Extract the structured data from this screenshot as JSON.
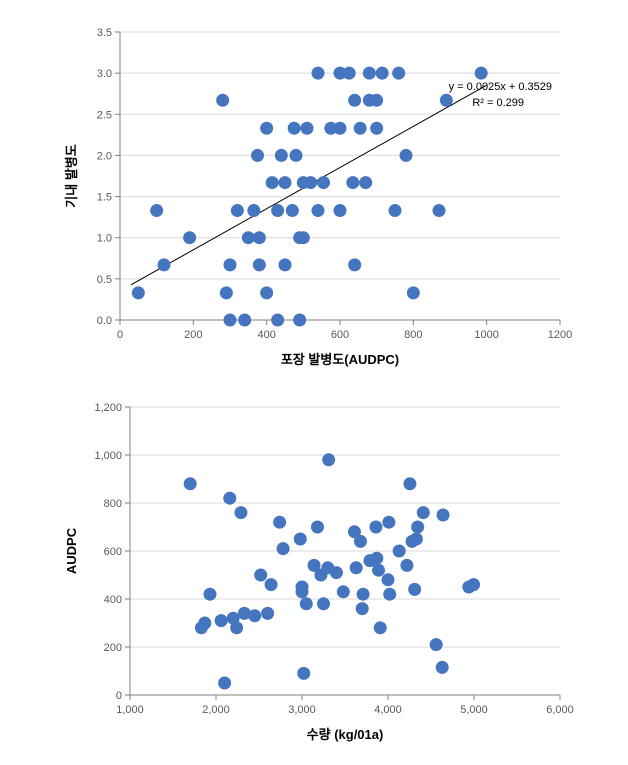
{
  "chart1": {
    "type": "scatter",
    "x_label": "포장 발병도(AUDPC)",
    "y_label": "기내 발병도",
    "xlim": [
      0,
      1200
    ],
    "ylim": [
      0.0,
      3.5
    ],
    "xtick_step": 200,
    "ytick_step": 0.5,
    "background_color": "#ffffff",
    "grid_color": "#d9d9d9",
    "axis_color": "#808080",
    "tick_color": "#808080",
    "tick_label_color": "#595959",
    "marker_color": "#4675c0",
    "marker_radius": 6.5,
    "marker_opacity": 1.0,
    "title_fontsize": 13,
    "tick_fontsize": 11,
    "regression": {
      "slope": 0.0025,
      "intercept": 0.3529,
      "r2": 0.299,
      "equation_text": "y = 0.0025x + 0.3529",
      "r2_text": "R² = 0.299",
      "line_color": "#000000",
      "line_width": 1,
      "x_start": 30,
      "x_end": 1000
    },
    "points": [
      [
        50,
        0.33
      ],
      [
        100,
        1.33
      ],
      [
        120,
        0.67
      ],
      [
        190,
        1.0
      ],
      [
        280,
        2.67
      ],
      [
        290,
        0.33
      ],
      [
        300,
        0.0
      ],
      [
        300,
        0.67
      ],
      [
        320,
        1.33
      ],
      [
        340,
        0.0
      ],
      [
        350,
        1.0
      ],
      [
        365,
        1.33
      ],
      [
        375,
        2.0
      ],
      [
        380,
        0.67
      ],
      [
        380,
        1.0
      ],
      [
        400,
        0.33
      ],
      [
        400,
        2.33
      ],
      [
        415,
        1.67
      ],
      [
        430,
        0.0
      ],
      [
        430,
        1.33
      ],
      [
        440,
        2.0
      ],
      [
        450,
        0.67
      ],
      [
        450,
        1.67
      ],
      [
        470,
        1.33
      ],
      [
        475,
        2.33
      ],
      [
        480,
        2.0
      ],
      [
        490,
        0.0
      ],
      [
        490,
        1.0
      ],
      [
        500,
        1.0
      ],
      [
        500,
        1.67
      ],
      [
        510,
        2.33
      ],
      [
        520,
        1.67
      ],
      [
        540,
        1.33
      ],
      [
        540,
        3.0
      ],
      [
        555,
        1.67
      ],
      [
        575,
        2.33
      ],
      [
        600,
        1.33
      ],
      [
        600,
        2.33
      ],
      [
        600,
        3.0
      ],
      [
        625,
        3.0
      ],
      [
        635,
        1.67
      ],
      [
        640,
        2.67
      ],
      [
        640,
        0.67
      ],
      [
        655,
        2.33
      ],
      [
        670,
        1.67
      ],
      [
        680,
        2.67
      ],
      [
        680,
        3.0
      ],
      [
        700,
        2.33
      ],
      [
        700,
        2.67
      ],
      [
        715,
        3.0
      ],
      [
        750,
        1.33
      ],
      [
        760,
        3.0
      ],
      [
        780,
        2.0
      ],
      [
        800,
        0.33
      ],
      [
        870,
        1.33
      ],
      [
        890,
        2.67
      ],
      [
        985,
        3.0
      ]
    ]
  },
  "chart2": {
    "type": "scatter",
    "x_label": "수량 (kg/01a)",
    "y_label": "AUDPC",
    "xlim": [
      1000,
      6000
    ],
    "ylim": [
      0,
      1200
    ],
    "xtick_step": 1000,
    "ytick_step": 200,
    "background_color": "#ffffff",
    "grid_color": "#d9d9d9",
    "axis_color": "#808080",
    "tick_color": "#808080",
    "tick_label_color": "#595959",
    "marker_color": "#4675c0",
    "marker_radius": 6.5,
    "marker_opacity": 1.0,
    "title_fontsize": 13,
    "tick_fontsize": 11,
    "points": [
      [
        1700,
        880
      ],
      [
        1830,
        280
      ],
      [
        1870,
        300
      ],
      [
        1930,
        420
      ],
      [
        2060,
        310
      ],
      [
        2100,
        50
      ],
      [
        2160,
        820
      ],
      [
        2200,
        320
      ],
      [
        2240,
        280
      ],
      [
        2290,
        760
      ],
      [
        2330,
        340
      ],
      [
        2450,
        330
      ],
      [
        2520,
        500
      ],
      [
        2600,
        340
      ],
      [
        2640,
        460
      ],
      [
        2740,
        720
      ],
      [
        2780,
        610
      ],
      [
        2980,
        650
      ],
      [
        3000,
        430
      ],
      [
        3000,
        450
      ],
      [
        3020,
        90
      ],
      [
        3050,
        380
      ],
      [
        3140,
        540
      ],
      [
        3180,
        700
      ],
      [
        3220,
        500
      ],
      [
        3250,
        380
      ],
      [
        3300,
        530
      ],
      [
        3310,
        980
      ],
      [
        3400,
        510
      ],
      [
        3480,
        430
      ],
      [
        3610,
        680
      ],
      [
        3630,
        530
      ],
      [
        3680,
        640
      ],
      [
        3700,
        360
      ],
      [
        3710,
        420
      ],
      [
        3790,
        560
      ],
      [
        3860,
        700
      ],
      [
        3870,
        570
      ],
      [
        3890,
        520
      ],
      [
        3910,
        280
      ],
      [
        4000,
        480
      ],
      [
        4010,
        720
      ],
      [
        4020,
        420
      ],
      [
        4130,
        600
      ],
      [
        4220,
        540
      ],
      [
        4255,
        880
      ],
      [
        4280,
        640
      ],
      [
        4310,
        440
      ],
      [
        4330,
        650
      ],
      [
        4345,
        700
      ],
      [
        4410,
        760
      ],
      [
        4560,
        210
      ],
      [
        4630,
        115
      ],
      [
        4640,
        750
      ],
      [
        4940,
        450
      ],
      [
        4995,
        460
      ]
    ]
  }
}
